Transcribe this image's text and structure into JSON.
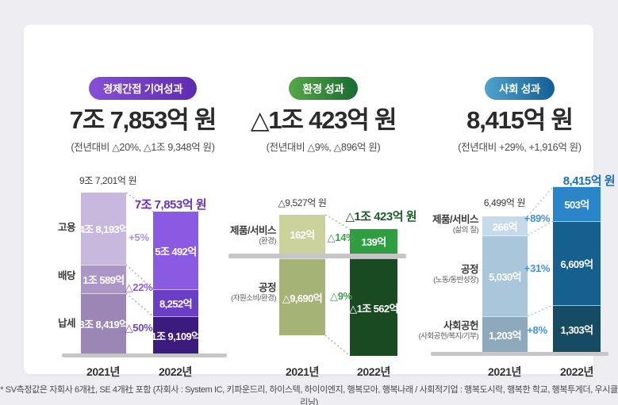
{
  "panels": [
    {
      "id": "economic-indirect",
      "badge": "경제간접 기여성과",
      "title": "7조 7,853억 원",
      "subtitle": "(전년대비 △20%, △1조 9,348억 원)",
      "colors": {
        "badge_gradient": [
          "#8550D3",
          "#5F2BB2"
        ],
        "total_2022": "#6B2FC9",
        "bars_2021": [
          "#C8B8DD",
          "#AB96C6",
          "#9B86B5"
        ],
        "bars_2022": [
          "#8A5BE2",
          "#6B3EC6",
          "#3B1B7E"
        ],
        "pcts": [
          "#AC90E6",
          "#8A5CD9",
          "#7442CD"
        ],
        "connector": "#A98CE0"
      }
    },
    {
      "id": "environment",
      "badge": "환경 성과",
      "title": "△1조 423억 원",
      "subtitle": "(전년대비 △9%, △896억 원)",
      "colors": {
        "badge_gradient": [
          "#57A749",
          "#186C2F"
        ],
        "total_2022": "#1B5E2B",
        "bars_2021": [
          "#CBD29C",
          "#A5B377"
        ],
        "bars_2022": [
          "#2E9E41",
          "#1A4A22"
        ],
        "pcts": [
          "#3DA04E",
          "#3DA04E"
        ],
        "connector": "#84B581"
      }
    },
    {
      "id": "social",
      "badge": "사회 성과",
      "title": "8,415억 원",
      "subtitle": "(전년대비 +29%, +1,916억 원)",
      "colors": {
        "badge_gradient": [
          "#4FA3CD",
          "#135F94"
        ],
        "total_2022": "#1B6FC3",
        "bars_2021": [
          "#C6DBE9",
          "#A9C6DA",
          "#8FA9BC"
        ],
        "bars_2022": [
          "#2B86C9",
          "#15608F",
          "#164B64"
        ],
        "pcts": [
          "#4090D6",
          "#4090D6",
          "#4090D6"
        ],
        "connector": "#8FBEE4"
      }
    }
  ],
  "chart_data": [
    {
      "type": "bar",
      "subtype": "stacked-column-comparison",
      "panel": "경제간접 기여성과",
      "unit": "억 원",
      "categories": [
        "2021년",
        "2022년"
      ],
      "total_label_2021": "9조 7,201억 원",
      "total_label_2022": "7조 7,853억 원",
      "total_2021_eok": 97201,
      "total_2022_eok": 77853,
      "rows": [
        {
          "label": "고용",
          "sublabel": "",
          "v2021_eok": 48193,
          "v2022_eok": 50492,
          "label_2021": "4조 8,193억",
          "label_2022": "5조 492억",
          "change": "+5%"
        },
        {
          "label": "배당",
          "sublabel": "",
          "v2021_eok": 10589,
          "v2022_eok": 8252,
          "label_2021": "1조 589억",
          "label_2022": "8,252억",
          "change": "△22%"
        },
        {
          "label": "납세",
          "sublabel": "",
          "v2021_eok": 38419,
          "v2022_eok": 19109,
          "label_2021": "3조 8,419억",
          "label_2022": "1조 9,109억",
          "change": "△50%"
        }
      ]
    },
    {
      "type": "bar",
      "subtype": "stacked-column-comparison-with-negative-axis",
      "panel": "환경 성과",
      "unit": "억 원",
      "categories": [
        "2021년",
        "2022년"
      ],
      "total_label_2021": "△9,527억 원",
      "total_label_2022": "△1조 423억 원",
      "total_2021_eok": -9527,
      "total_2022_eok": -10423,
      "rows": [
        {
          "label": "제품/서비스",
          "sublabel": "(환경)",
          "v2021_eok": 162,
          "v2022_eok": 139,
          "label_2021": "162억",
          "label_2022": "139억",
          "change": "△14%"
        },
        {
          "label": "공정",
          "sublabel": "(자원소비/환경)",
          "v2021_eok": -9690,
          "v2022_eok": -10562,
          "label_2021": "△9,690억",
          "label_2022": "△1조 562억",
          "change": "△9%"
        }
      ]
    },
    {
      "type": "bar",
      "subtype": "stacked-column-comparison",
      "panel": "사회 성과",
      "unit": "억 원",
      "categories": [
        "2021년",
        "2022년"
      ],
      "total_label_2021": "6,499억 원",
      "total_label_2022": "8,415억 원",
      "total_2021_eok": 6499,
      "total_2022_eok": 8415,
      "rows": [
        {
          "label": "제품/서비스",
          "sublabel": "(삶의 질)",
          "v2021_eok": 266,
          "v2022_eok": 503,
          "label_2021": "266억",
          "label_2022": "503억",
          "change": "+89%"
        },
        {
          "label": "공정",
          "sublabel": "(노동/동반성장)",
          "v2021_eok": 5030,
          "v2022_eok": 6609,
          "label_2021": "5,030억",
          "label_2022": "6,609억",
          "change": "+31%"
        },
        {
          "label": "사회공헌",
          "sublabel": "(사회공헌/복지/기부)",
          "v2021_eok": 1203,
          "v2022_eok": 1303,
          "label_2021": "1,203억",
          "label_2022": "1,303억",
          "change": "+8%"
        }
      ]
    }
  ],
  "footnote": "* SV측정값은 자회사 6개社, SE 4개社 포함 (자회사 : System IC, 키파운드리, 하이스텍, 하이이엔지, 행복모아, 행복나래 / 사회적기업 : 행복도시락, 행복한 학교, 행복투게더, 우시클리닝)"
}
